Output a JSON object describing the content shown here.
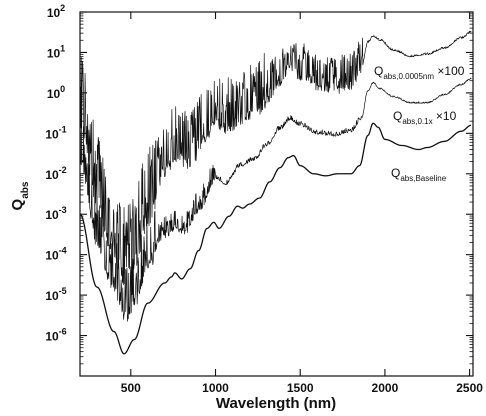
{
  "chart_data": {
    "type": "line",
    "xlabel": "Wavelength (nm)",
    "ylabel_main": "Q",
    "ylabel_sub": "abs",
    "xlim": [
      200,
      2520
    ],
    "ylim_log10": [
      -7,
      2
    ],
    "y_scale": "log",
    "grid": false,
    "x_ticks": [
      500,
      1000,
      1500,
      2000,
      2500
    ],
    "x_tick_labels": [
      "500",
      "1000",
      "1500",
      "2000",
      "2500"
    ],
    "y_tick_exponents": [
      -6,
      -5,
      -4,
      -3,
      -2,
      -1,
      0,
      1,
      2
    ],
    "series": [
      {
        "annotation_main": "Q",
        "annotation_sub": "abs,Baseline",
        "annotation_suffix": "",
        "noisy": false,
        "points": [
          [
            200,
            -3.0
          ],
          [
            300,
            -4.8
          ],
          [
            400,
            -5.9
          ],
          [
            460,
            -6.45
          ],
          [
            520,
            -6.1
          ],
          [
            600,
            -5.2
          ],
          [
            700,
            -4.7
          ],
          [
            740,
            -4.55
          ],
          [
            760,
            -4.45
          ],
          [
            800,
            -4.6
          ],
          [
            850,
            -4.35
          ],
          [
            900,
            -3.9
          ],
          [
            950,
            -3.35
          ],
          [
            990,
            -3.2
          ],
          [
            1020,
            -3.35
          ],
          [
            1080,
            -3.05
          ],
          [
            1130,
            -2.8
          ],
          [
            1160,
            -2.85
          ],
          [
            1200,
            -2.75
          ],
          [
            1260,
            -2.6
          ],
          [
            1320,
            -2.2
          ],
          [
            1380,
            -1.85
          ],
          [
            1430,
            -1.6
          ],
          [
            1460,
            -1.55
          ],
          [
            1500,
            -1.8
          ],
          [
            1580,
            -2.0
          ],
          [
            1650,
            -2.05
          ],
          [
            1720,
            -2.0
          ],
          [
            1800,
            -2.0
          ],
          [
            1850,
            -1.8
          ],
          [
            1900,
            -1.05
          ],
          [
            1930,
            -0.75
          ],
          [
            1960,
            -0.85
          ],
          [
            2000,
            -1.15
          ],
          [
            2100,
            -1.3
          ],
          [
            2200,
            -1.4
          ],
          [
            2250,
            -1.35
          ],
          [
            2350,
            -1.2
          ],
          [
            2450,
            -0.95
          ],
          [
            2510,
            -0.8
          ]
        ]
      },
      {
        "annotation_main": "Q",
        "annotation_sub": "abs,0.1x",
        "annotation_suffix": "×10",
        "noisy": true,
        "points": [
          [
            200,
            -1.5
          ],
          [
            300,
            -3.6
          ],
          [
            400,
            -4.7
          ],
          [
            470,
            -5.4
          ],
          [
            530,
            -5.0
          ],
          [
            600,
            -4.1
          ],
          [
            700,
            -3.5
          ],
          [
            760,
            -3.3
          ],
          [
            820,
            -3.4
          ],
          [
            900,
            -2.85
          ],
          [
            1000,
            -2.1
          ],
          [
            1060,
            -2.25
          ],
          [
            1150,
            -1.8
          ],
          [
            1230,
            -1.65
          ],
          [
            1300,
            -1.3
          ],
          [
            1380,
            -0.9
          ],
          [
            1440,
            -0.65
          ],
          [
            1500,
            -0.8
          ],
          [
            1600,
            -1.0
          ],
          [
            1700,
            -1.05
          ],
          [
            1800,
            -0.95
          ],
          [
            1860,
            -0.65
          ],
          [
            1900,
            0.05
          ],
          [
            1930,
            0.25
          ],
          [
            1970,
            0.1
          ],
          [
            2050,
            -0.1
          ],
          [
            2150,
            -0.25
          ],
          [
            2250,
            -0.25
          ],
          [
            2350,
            -0.05
          ],
          [
            2450,
            0.2
          ],
          [
            2510,
            0.35
          ]
        ]
      },
      {
        "annotation_main": "Q",
        "annotation_sub": "abs,0.0005nm",
        "annotation_suffix": "×100",
        "noisy": true,
        "points": [
          [
            200,
            -0.5
          ],
          [
            300,
            -2.5
          ],
          [
            400,
            -3.85
          ],
          [
            470,
            -4.45
          ],
          [
            530,
            -3.9
          ],
          [
            600,
            -2.9
          ],
          [
            700,
            -1.85
          ],
          [
            760,
            -1.45
          ],
          [
            850,
            -1.6
          ],
          [
            950,
            -0.95
          ],
          [
            1000,
            -0.6
          ],
          [
            1070,
            -0.75
          ],
          [
            1150,
            -0.5
          ],
          [
            1230,
            -0.4
          ],
          [
            1300,
            -0.1
          ],
          [
            1380,
            0.35
          ],
          [
            1440,
            0.7
          ],
          [
            1500,
            0.5
          ],
          [
            1600,
            0.25
          ],
          [
            1700,
            0.15
          ],
          [
            1800,
            0.25
          ],
          [
            1860,
            0.6
          ],
          [
            1900,
            1.25
          ],
          [
            1930,
            1.4
          ],
          [
            1970,
            1.3
          ],
          [
            2050,
            1.05
          ],
          [
            2150,
            0.9
          ],
          [
            2250,
            0.95
          ],
          [
            2350,
            1.1
          ],
          [
            2450,
            1.35
          ],
          [
            2510,
            1.5
          ]
        ]
      }
    ]
  }
}
